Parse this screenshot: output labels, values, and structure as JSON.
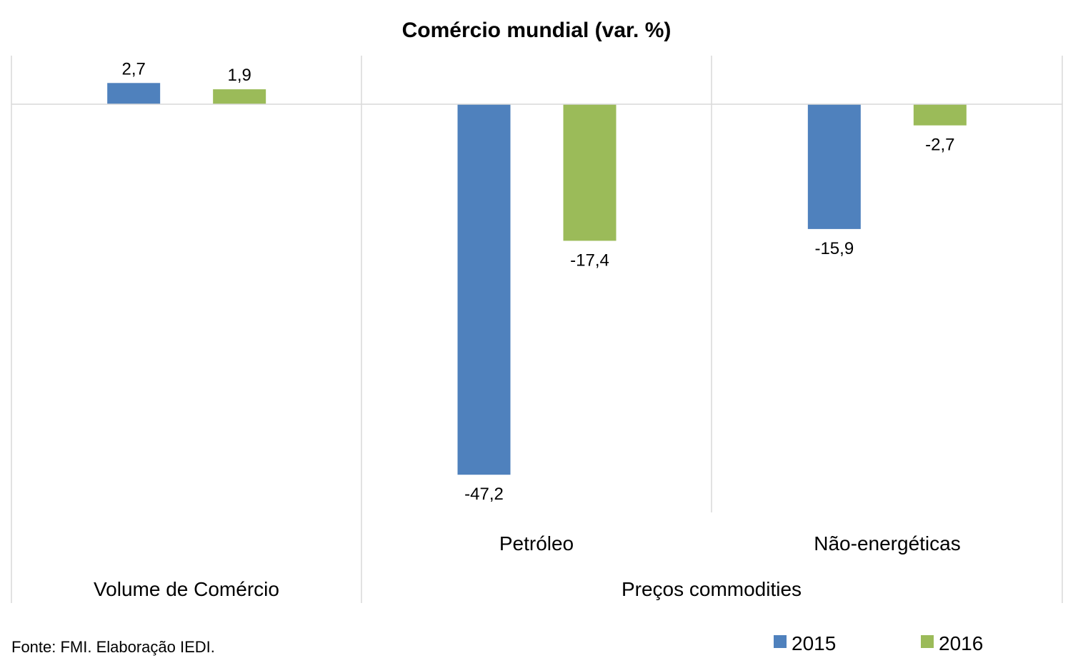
{
  "chart_data": {
    "type": "bar",
    "title": "Comércio mundial (var. %)",
    "categories": [
      "",
      "Petróleo",
      "Não-energéticas"
    ],
    "groups": [
      "Volume de Comércio",
      "Preços commodities"
    ],
    "series": [
      {
        "name": "2015",
        "values": [
          2.7,
          -47.2,
          -15.9
        ],
        "labels": [
          "2,7",
          "-47,2",
          "-15,9"
        ],
        "color": "#4f81bd"
      },
      {
        "name": "2016",
        "values": [
          1.9,
          -17.4,
          -2.7
        ],
        "labels": [
          "1,9",
          "-17,4",
          "-2,7"
        ],
        "color": "#9bbb59"
      }
    ],
    "ylim": [
      -52,
      6
    ],
    "grid": false,
    "legend_position": "bottom-right"
  },
  "source_note": "Fonte: FMI. Elaboração IEDI."
}
